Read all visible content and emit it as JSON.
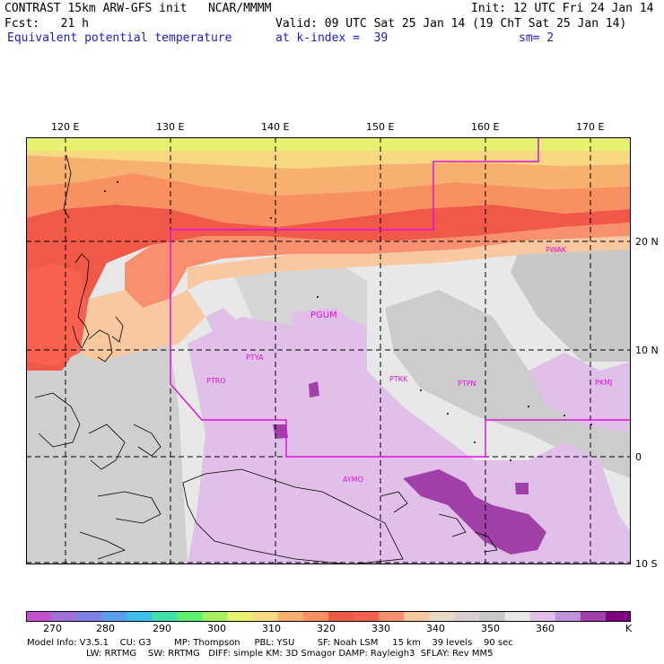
{
  "header": {
    "line1_left": "CONTRAST 15km ARW-GFS init   NCAR/MMMM",
    "line1_right": "Init: 12 UTC Fri 24 Jan 14",
    "line2_left": "Fcst:   21 h",
    "line2_right": "Valid: 09 UTC Sat 25 Jan 14 (19 ChT Sat 25 Jan 14)",
    "line3_left": "Equivalent potential temperature",
    "line3_mid": "at k-index =  39",
    "line3_right": "sm= 2"
  },
  "axes": {
    "lon_labels": [
      "120 E",
      "130 E",
      "140 E",
      "150 E",
      "160 E",
      "170 E"
    ],
    "lat_labels": [
      "20 N",
      "10 N",
      "0",
      "10 S"
    ]
  },
  "stations": [
    "PGUM",
    "PTYA",
    "PTRO",
    "PTKK",
    "PTPN",
    "PKMJ",
    "PWAK",
    "AYMO"
  ],
  "colorbar": {
    "colors": [
      "#c050d0",
      "#9e70d8",
      "#7f7fe8",
      "#5a9ef0",
      "#40c0e8",
      "#40e0a8",
      "#60f070",
      "#a8f060",
      "#e8f070",
      "#f8d880",
      "#f8b070",
      "#f89060",
      "#f05848",
      "#f86050",
      "#f89070",
      "#f8c8a0",
      "#e8d8c8",
      "#d8d0d0",
      "#c8c8c8",
      "#e8e8e8",
      "#e0c0e8",
      "#c090d8",
      "#a040a8",
      "#800080"
    ],
    "labels": [
      "270",
      "280",
      "290",
      "300",
      "310",
      "320",
      "330",
      "340",
      "350",
      "360",
      "K"
    ]
  },
  "model_info": {
    "line1": "Model Info: V3.5.1    CU: G3        MP: Thompson     PBL: YSU        SF: Noah LSM     15 km    39 levels    90 sec",
    "line2": "LW: RRTMG    SW: RRTMG   DIFF: simple KM: 3D Smagor DAMP: Rayleigh3  SFLAY: Rev MM5"
  }
}
